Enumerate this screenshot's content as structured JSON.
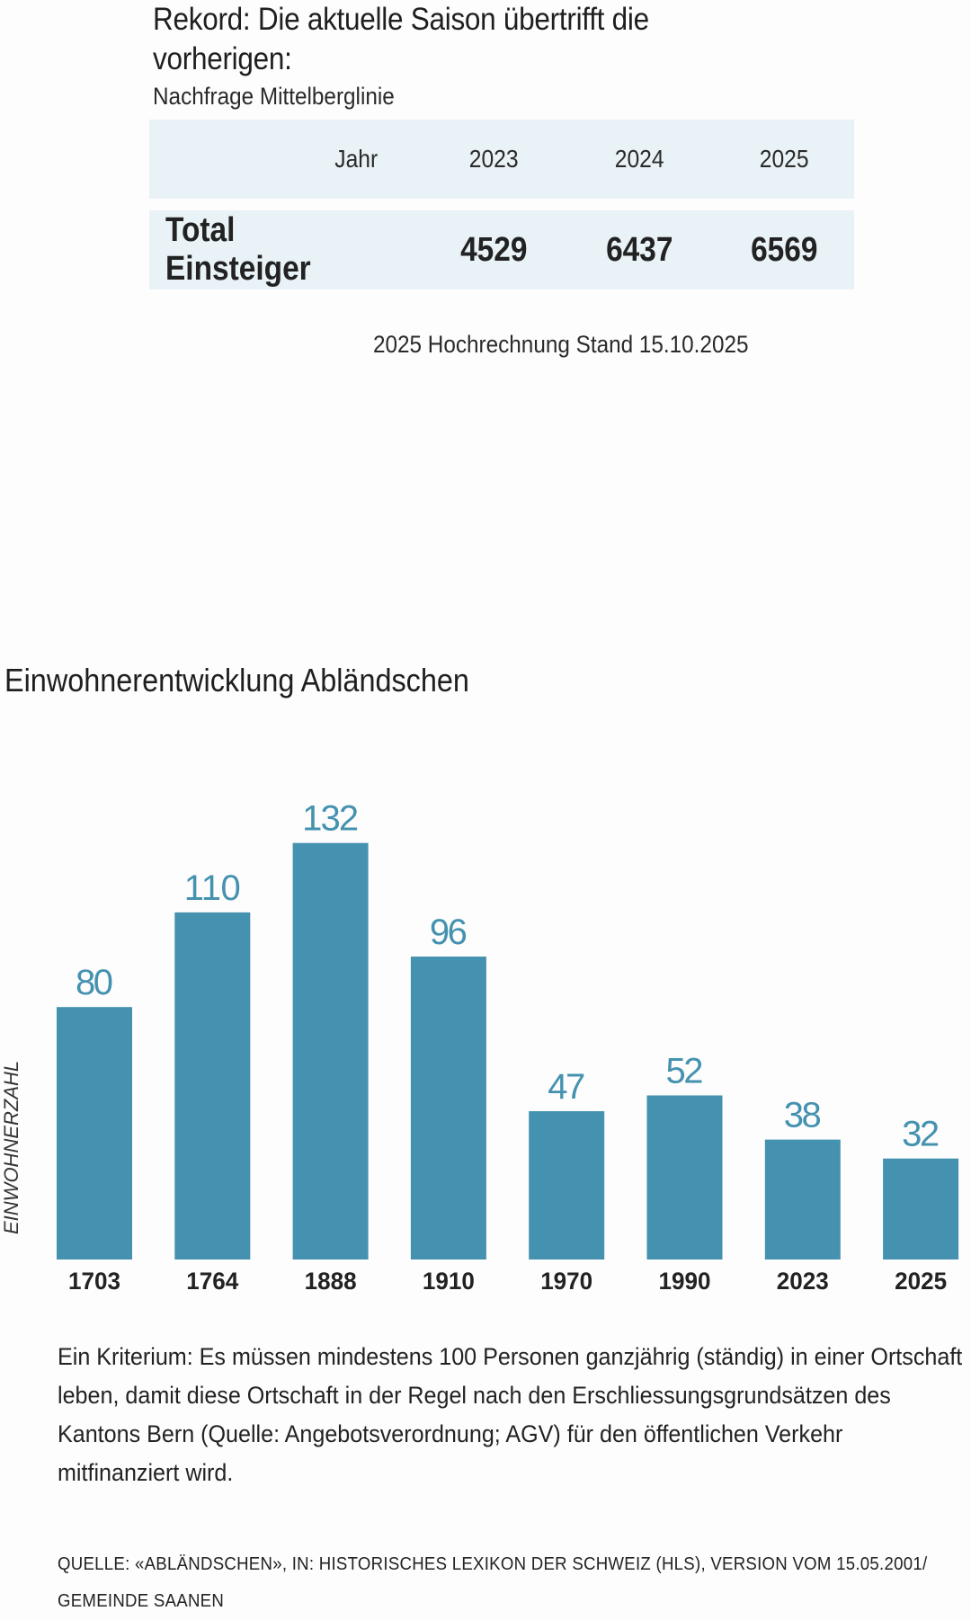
{
  "table_section": {
    "title": "Rekord: Die aktuelle Saison übertrifft die vorherigen:",
    "subtitle": "Nachfrage Mittelberglinie",
    "header": [
      "Jahr",
      "2023",
      "2024",
      "2025"
    ],
    "row": {
      "label": "Total Einsteiger",
      "values": [
        "4529",
        "6437",
        "6569"
      ]
    },
    "note": "2025 Hochrechnung Stand 15.10.2025"
  },
  "chart_section": {
    "title": "Einwohnerentwicklung Abländschen",
    "ylabel": "EINWOHNERZAHL",
    "bar_color": "#4592b0",
    "label_color": "#4592b0",
    "body_text": "Ein Kriterium: Es müssen mindestens 100 Personen ganzjährig (ständig) in einer Ortschaft leben, damit diese Ortschaft in der Regel nach den Erschliessungsgrundsätzen des Kantons Bern (Quelle: Angebotsverordnung; AGV) für den öffentlichen Verkehr mitfinanziert wird.",
    "source": "QUELLE: «ABLÄNDSCHEN», IN: HISTORISCHES LEXIKON DER SCHWEIZ (HLS), VERSION VOM 15.05.2001/ GEMEINDE SAANEN"
  },
  "chart_data": {
    "type": "bar",
    "title": "Einwohnerentwicklung Abländschen",
    "xlabel": "",
    "ylabel": "EINWOHNERZAHL",
    "categories": [
      "1703",
      "1764",
      "1888",
      "1910",
      "1970",
      "1990",
      "2023",
      "2025"
    ],
    "values": [
      80,
      110,
      132,
      96,
      47,
      52,
      38,
      32
    ],
    "ylim": [
      0,
      132
    ],
    "grid": false,
    "data_labels": true
  }
}
